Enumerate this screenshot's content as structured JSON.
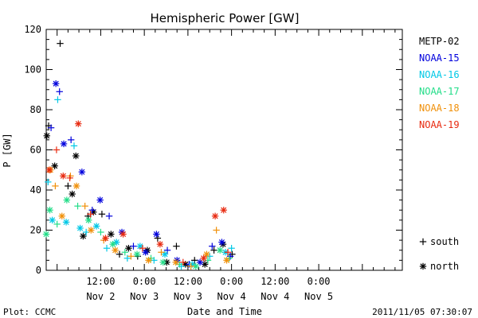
{
  "chart_data": {
    "type": "scatter",
    "title": "Hemispheric Power [GW]",
    "ylabel": "P [GW]",
    "xlabel": "Date and Time",
    "ylim": [
      0,
      120
    ],
    "yticks": [
      0,
      20,
      40,
      60,
      80,
      100,
      120
    ],
    "xlim": [
      "2011-11-01 21:00",
      "2011-11-05 23:00"
    ],
    "xtick_labels": [
      {
        "time": "12:00",
        "date": "Nov 2"
      },
      {
        "time": "0:00",
        "date": "Nov 3"
      },
      {
        "time": "12:00",
        "date": "Nov 3"
      },
      {
        "time": "0:00",
        "date": "Nov 4"
      },
      {
        "time": "12:00",
        "date": "Nov 4"
      },
      {
        "time": "0:00",
        "date": "Nov 5"
      }
    ],
    "symbol_legend": [
      {
        "symbol": "+",
        "label": "south"
      },
      {
        "symbol": "*",
        "label": "north"
      }
    ],
    "series": [
      {
        "name": "METP-02",
        "color": "#000000",
        "points": [
          {
            "x": "2011-11-01 21:10",
            "y": 67,
            "m": "*"
          },
          {
            "x": "2011-11-01 21:40",
            "y": 72,
            "m": "+"
          },
          {
            "x": "2011-11-01 23:20",
            "y": 52,
            "m": "*"
          },
          {
            "x": "2011-11-02 00:50",
            "y": 113,
            "m": "+"
          },
          {
            "x": "2011-11-02 03:00",
            "y": 42,
            "m": "+"
          },
          {
            "x": "2011-11-02 04:10",
            "y": 38,
            "m": "*"
          },
          {
            "x": "2011-11-02 05:10",
            "y": 57,
            "m": "*"
          },
          {
            "x": "2011-11-02 07:10",
            "y": 17,
            "m": "*"
          },
          {
            "x": "2011-11-02 08:30",
            "y": 27,
            "m": "+"
          },
          {
            "x": "2011-11-02 10:00",
            "y": 29,
            "m": "*"
          },
          {
            "x": "2011-11-02 12:20",
            "y": 28,
            "m": "+"
          },
          {
            "x": "2011-11-02 14:50",
            "y": 18,
            "m": "*"
          },
          {
            "x": "2011-11-02 17:10",
            "y": 8,
            "m": "+"
          },
          {
            "x": "2011-11-02 19:40",
            "y": 11,
            "m": "*"
          },
          {
            "x": "2011-11-02 22:10",
            "y": 7,
            "m": "+"
          },
          {
            "x": "2011-11-03 00:50",
            "y": 10,
            "m": "*"
          },
          {
            "x": "2011-11-03 03:40",
            "y": 16,
            "m": "+"
          },
          {
            "x": "2011-11-03 06:10",
            "y": 4,
            "m": "*"
          },
          {
            "x": "2011-11-03 08:50",
            "y": 12,
            "m": "+"
          },
          {
            "x": "2011-11-03 11:20",
            "y": 3,
            "m": "*"
          },
          {
            "x": "2011-11-03 13:50",
            "y": 5,
            "m": "+"
          },
          {
            "x": "2011-11-03 16:40",
            "y": 3,
            "m": "*"
          },
          {
            "x": "2011-11-03 19:10",
            "y": 10,
            "m": "+"
          },
          {
            "x": "2011-11-03 21:40",
            "y": 13,
            "m": "*"
          },
          {
            "x": "2011-11-04 00:10",
            "y": 8,
            "m": "+"
          }
        ]
      },
      {
        "name": "NOAA-15",
        "color": "#0000dd",
        "points": [
          {
            "x": "2011-11-01 22:20",
            "y": 71,
            "m": "+"
          },
          {
            "x": "2011-11-01 23:40",
            "y": 93,
            "m": "*"
          },
          {
            "x": "2011-11-02 00:40",
            "y": 89,
            "m": "+"
          },
          {
            "x": "2011-11-02 01:50",
            "y": 63,
            "m": "*"
          },
          {
            "x": "2011-11-02 03:50",
            "y": 65,
            "m": "+"
          },
          {
            "x": "2011-11-02 06:50",
            "y": 49,
            "m": "*"
          },
          {
            "x": "2011-11-02 09:40",
            "y": 30,
            "m": "+"
          },
          {
            "x": "2011-11-02 11:50",
            "y": 35,
            "m": "*"
          },
          {
            "x": "2011-11-02 14:20",
            "y": 27,
            "m": "+"
          },
          {
            "x": "2011-11-02 17:50",
            "y": 19,
            "m": "*"
          },
          {
            "x": "2011-11-02 21:00",
            "y": 12,
            "m": "+"
          },
          {
            "x": "2011-11-03 00:20",
            "y": 9,
            "m": "*"
          },
          {
            "x": "2011-11-03 03:20",
            "y": 18,
            "m": "*"
          },
          {
            "x": "2011-11-03 06:20",
            "y": 10,
            "m": "+"
          },
          {
            "x": "2011-11-03 09:00",
            "y": 5,
            "m": "*"
          },
          {
            "x": "2011-11-03 12:20",
            "y": 3,
            "m": "+"
          },
          {
            "x": "2011-11-03 15:20",
            "y": 4,
            "m": "*"
          },
          {
            "x": "2011-11-03 18:40",
            "y": 12,
            "m": "+"
          },
          {
            "x": "2011-11-03 21:20",
            "y": 14,
            "m": "*"
          },
          {
            "x": "2011-11-03 23:40",
            "y": 7,
            "m": "+"
          }
        ]
      },
      {
        "name": "NOAA-16",
        "color": "#00c8e6",
        "points": [
          {
            "x": "2011-11-01 21:30",
            "y": 44,
            "m": "+"
          },
          {
            "x": "2011-11-01 22:40",
            "y": 25,
            "m": "*"
          },
          {
            "x": "2011-11-02 00:10",
            "y": 85,
            "m": "+"
          },
          {
            "x": "2011-11-02 02:30",
            "y": 24,
            "m": "*"
          },
          {
            "x": "2011-11-02 04:40",
            "y": 62,
            "m": "+"
          },
          {
            "x": "2011-11-02 06:20",
            "y": 21,
            "m": "*"
          },
          {
            "x": "2011-11-02 08:00",
            "y": 19,
            "m": "+"
          },
          {
            "x": "2011-11-02 10:50",
            "y": 22,
            "m": "*"
          },
          {
            "x": "2011-11-02 13:40",
            "y": 11,
            "m": "+"
          },
          {
            "x": "2011-11-02 16:20",
            "y": 14,
            "m": "*"
          },
          {
            "x": "2011-11-02 19:20",
            "y": 6,
            "m": "+"
          },
          {
            "x": "2011-11-02 22:50",
            "y": 12,
            "m": "*"
          },
          {
            "x": "2011-11-03 02:40",
            "y": 5,
            "m": "+"
          },
          {
            "x": "2011-11-03 05:40",
            "y": 8,
            "m": "*"
          },
          {
            "x": "2011-11-03 10:10",
            "y": 2,
            "m": "+"
          },
          {
            "x": "2011-11-03 13:10",
            "y": 3,
            "m": "*"
          },
          {
            "x": "2011-11-03 18:00",
            "y": 7,
            "m": "+"
          },
          {
            "x": "2011-11-03 22:20",
            "y": 9,
            "m": "*"
          },
          {
            "x": "2011-11-04 00:00",
            "y": 11,
            "m": "+"
          }
        ]
      },
      {
        "name": "NOAA-17",
        "color": "#22dd88",
        "points": [
          {
            "x": "2011-11-01 21:00",
            "y": 18,
            "m": "*"
          },
          {
            "x": "2011-11-01 22:00",
            "y": 30,
            "m": "*"
          },
          {
            "x": "2011-11-02 00:00",
            "y": 23,
            "m": "+"
          },
          {
            "x": "2011-11-02 02:40",
            "y": 35,
            "m": "*"
          },
          {
            "x": "2011-11-02 05:40",
            "y": 32,
            "m": "+"
          },
          {
            "x": "2011-11-02 08:40",
            "y": 25,
            "m": "*"
          },
          {
            "x": "2011-11-02 12:00",
            "y": 19,
            "m": "+"
          },
          {
            "x": "2011-11-02 15:20",
            "y": 13,
            "m": "*"
          },
          {
            "x": "2011-11-02 18:40",
            "y": 9,
            "m": "+"
          },
          {
            "x": "2011-11-02 22:00",
            "y": 8,
            "m": "*"
          },
          {
            "x": "2011-11-03 01:50",
            "y": 6,
            "m": "+"
          },
          {
            "x": "2011-11-03 05:10",
            "y": 4,
            "m": "*"
          },
          {
            "x": "2011-11-03 09:40",
            "y": 3,
            "m": "+"
          },
          {
            "x": "2011-11-03 14:10",
            "y": 2,
            "m": "*"
          },
          {
            "x": "2011-11-03 17:30",
            "y": 5,
            "m": "+"
          },
          {
            "x": "2011-11-03 20:50",
            "y": 10,
            "m": "*"
          },
          {
            "x": "2011-11-03 23:20",
            "y": 6,
            "m": "+"
          }
        ]
      },
      {
        "name": "NOAA-18",
        "color": "#f0900a",
        "points": [
          {
            "x": "2011-11-01 22:10",
            "y": 50,
            "m": "*"
          },
          {
            "x": "2011-11-01 23:30",
            "y": 42,
            "m": "+"
          },
          {
            "x": "2011-11-02 01:20",
            "y": 27,
            "m": "*"
          },
          {
            "x": "2011-11-02 03:40",
            "y": 47,
            "m": "+"
          },
          {
            "x": "2011-11-02 05:20",
            "y": 42,
            "m": "*"
          },
          {
            "x": "2011-11-02 07:40",
            "y": 32,
            "m": "+"
          },
          {
            "x": "2011-11-02 09:20",
            "y": 20,
            "m": "*"
          },
          {
            "x": "2011-11-02 12:50",
            "y": 15,
            "m": "+"
          },
          {
            "x": "2011-11-02 16:00",
            "y": 10,
            "m": "*"
          },
          {
            "x": "2011-11-02 20:20",
            "y": 7,
            "m": "+"
          },
          {
            "x": "2011-11-03 01:10",
            "y": 5,
            "m": "*"
          },
          {
            "x": "2011-11-03 04:40",
            "y": 9,
            "m": "+"
          },
          {
            "x": "2011-11-03 08:40",
            "y": 4,
            "m": "*"
          },
          {
            "x": "2011-11-03 12:50",
            "y": 2,
            "m": "+"
          },
          {
            "x": "2011-11-03 17:10",
            "y": 8,
            "m": "*"
          },
          {
            "x": "2011-11-03 19:50",
            "y": 20,
            "m": "+"
          },
          {
            "x": "2011-11-03 22:40",
            "y": 5,
            "m": "*"
          }
        ]
      },
      {
        "name": "NOAA-19",
        "color": "#e82a10",
        "points": [
          {
            "x": "2011-11-01 21:50",
            "y": 50,
            "m": "*"
          },
          {
            "x": "2011-11-01 23:50",
            "y": 60,
            "m": "+"
          },
          {
            "x": "2011-11-02 01:40",
            "y": 47,
            "m": "*"
          },
          {
            "x": "2011-11-02 03:30",
            "y": 46,
            "m": "+"
          },
          {
            "x": "2011-11-02 05:50",
            "y": 73,
            "m": "*"
          },
          {
            "x": "2011-11-02 09:10",
            "y": 28,
            "m": "+"
          },
          {
            "x": "2011-11-02 13:20",
            "y": 16,
            "m": "*"
          },
          {
            "x": "2011-11-02 18:10",
            "y": 18,
            "m": "*"
          },
          {
            "x": "2011-11-02 23:30",
            "y": 11,
            "m": "+"
          },
          {
            "x": "2011-11-03 04:20",
            "y": 13,
            "m": "*"
          },
          {
            "x": "2011-11-03 10:40",
            "y": 4,
            "m": "+"
          },
          {
            "x": "2011-11-03 16:20",
            "y": 6,
            "m": "*"
          },
          {
            "x": "2011-11-03 19:30",
            "y": 27,
            "m": "*"
          },
          {
            "x": "2011-11-03 21:50",
            "y": 30,
            "m": "*"
          },
          {
            "x": "2011-11-03 23:00",
            "y": 9,
            "m": "+"
          }
        ]
      }
    ]
  },
  "footer": {
    "source": "Plot: CCMC",
    "timestamp": "2011/11/05 07:30:07"
  }
}
